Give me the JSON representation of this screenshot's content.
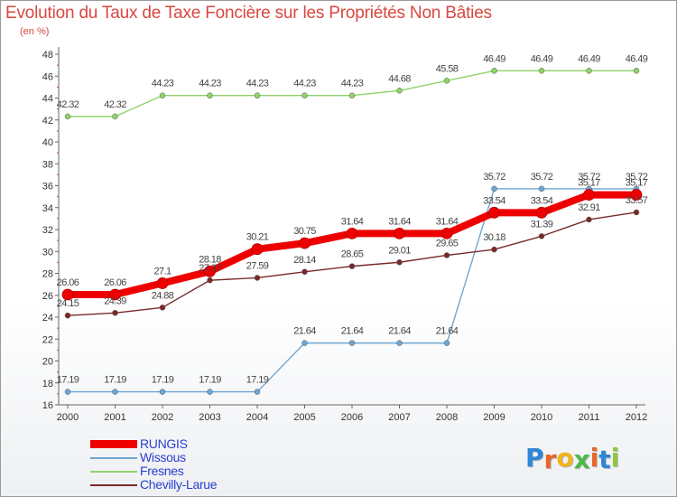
{
  "chart_data": {
    "type": "line",
    "title": "Evolution du Taux de Taxe Foncière sur les Propriétés Non Bâties",
    "subtitle": "(en %)",
    "xlabel": "",
    "ylabel": "",
    "x": [
      "2000",
      "2001",
      "2002",
      "2003",
      "2004",
      "2005",
      "2006",
      "2007",
      "2008",
      "2009",
      "2010",
      "2011",
      "2012"
    ],
    "ylim": [
      16,
      48
    ],
    "yticks": [
      16,
      18,
      20,
      22,
      24,
      26,
      28,
      30,
      32,
      34,
      36,
      38,
      40,
      42,
      44,
      46,
      48
    ],
    "grid": false,
    "legend_position": "bottom-left",
    "series": [
      {
        "name": "RUNGIS",
        "color": "#ee0000",
        "values": [
          26.06,
          26.06,
          27.1,
          28.18,
          30.21,
          30.75,
          31.64,
          31.64,
          31.64,
          33.54,
          33.54,
          35.17,
          35.17
        ],
        "labels": [
          "26.06",
          "26.06",
          "27.1",
          "28.18",
          "30.21",
          "30.75",
          "31.64",
          "31.64",
          "31.64",
          "33.54",
          "33.54",
          "35.17",
          "35.17"
        ]
      },
      {
        "name": "Wissous",
        "color": "#6fa6d2",
        "values": [
          17.19,
          17.19,
          17.19,
          17.19,
          17.19,
          21.64,
          21.64,
          21.64,
          21.64,
          35.72,
          35.72,
          35.72,
          35.72
        ],
        "labels": [
          "17.19",
          "17.19",
          "17.19",
          "17.19",
          "17.19",
          "21.64",
          "21.64",
          "21.64",
          "21.64",
          "35.72",
          "35.72",
          "35.72",
          "35.72"
        ]
      },
      {
        "name": "Fresnes",
        "color": "#8fd36a",
        "values": [
          42.32,
          42.32,
          44.23,
          44.23,
          44.23,
          44.23,
          44.23,
          44.68,
          45.58,
          46.49,
          46.49,
          46.49,
          46.49
        ],
        "labels": [
          "42.32",
          "42.32",
          "44.23",
          "44.23",
          "44.23",
          "44.23",
          "44.23",
          "44.68",
          "45.58",
          "46.49",
          "46.49",
          "46.49",
          "46.49"
        ]
      },
      {
        "name": "Chevilly-Larue",
        "color": "#7a2a2a",
        "values": [
          24.15,
          24.39,
          24.88,
          27.37,
          27.59,
          28.14,
          28.65,
          29.01,
          29.65,
          30.18,
          31.39,
          32.91,
          33.57
        ],
        "labels": [
          "24.15",
          "24.39",
          "24.88",
          "27.37",
          "27.59",
          "28.14",
          "28.65",
          "29.01",
          "29.65",
          "30.18",
          "31.39",
          "32.91",
          "33.57"
        ]
      }
    ]
  },
  "logo": {
    "letters": [
      "P",
      "r",
      "o",
      "x",
      "i",
      "t",
      "i"
    ],
    "colors": [
      "#2e86d6",
      "#e8662a",
      "#f3b31a",
      "#4db848",
      "#e8662a",
      "#2e86d6",
      "#8fc641"
    ]
  }
}
